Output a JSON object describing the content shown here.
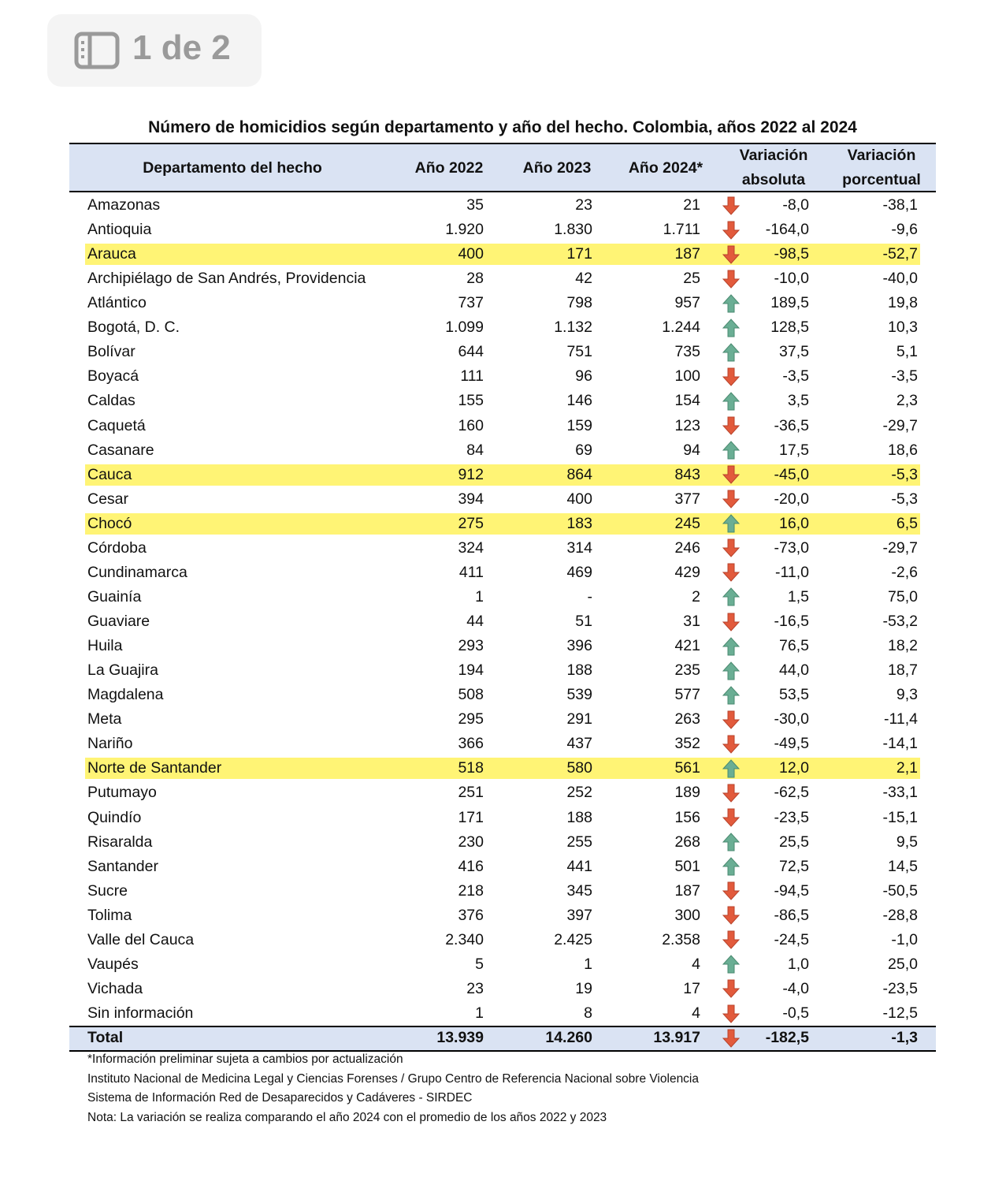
{
  "badge": "1 de 2",
  "title": "Número de homicidios según departamento y año del hecho. Colombia, años 2022 al 2024",
  "table": {
    "headers": [
      "Departamento del hecho",
      "Año 2022",
      "Año 2023",
      "Año 2024*",
      "Variación absoluta",
      "Variación porcentual"
    ],
    "rows": [
      [
        "Amazonas",
        "35",
        "23",
        "21",
        "-8,0",
        "-38,1"
      ],
      [
        "Antioquia",
        "1.920",
        "1.830",
        "1.711",
        "-164,0",
        "-9,6"
      ],
      [
        "Arauca",
        "400",
        "171",
        "187",
        "-98,5",
        "-52,7"
      ],
      [
        "Archipiélago de San Andrés, Providencia",
        "28",
        "42",
        "25",
        "-10,0",
        "-40,0"
      ],
      [
        "Atlántico",
        "737",
        "798",
        "957",
        "189,5",
        "19,8"
      ],
      [
        "Bogotá, D. C.",
        "1.099",
        "1.132",
        "1.244",
        "128,5",
        "10,3"
      ],
      [
        "Bolívar",
        "644",
        "751",
        "735",
        "37,5",
        "5,1"
      ],
      [
        "Boyacá",
        "111",
        "96",
        "100",
        "-3,5",
        "-3,5"
      ],
      [
        "Caldas",
        "155",
        "146",
        "154",
        "3,5",
        "2,3"
      ],
      [
        "Caquetá",
        "160",
        "159",
        "123",
        "-36,5",
        "-29,7"
      ],
      [
        "Casanare",
        "84",
        "69",
        "94",
        "17,5",
        "18,6"
      ],
      [
        "Cauca",
        "912",
        "864",
        "843",
        "-45,0",
        "-5,3"
      ],
      [
        "Cesar",
        "394",
        "400",
        "377",
        "-20,0",
        "-5,3"
      ],
      [
        "Chocó",
        "275",
        "183",
        "245",
        "16,0",
        "6,5"
      ],
      [
        "Córdoba",
        "324",
        "314",
        "246",
        "-73,0",
        "-29,7"
      ],
      [
        "Cundinamarca",
        "411",
        "469",
        "429",
        "-11,0",
        "-2,6"
      ],
      [
        "Guainía",
        "1",
        "-",
        "2",
        "1,5",
        "75,0"
      ],
      [
        "Guaviare",
        "44",
        "51",
        "31",
        "-16,5",
        "-53,2"
      ],
      [
        "Huila",
        "293",
        "396",
        "421",
        "76,5",
        "18,2"
      ],
      [
        "La Guajira",
        "194",
        "188",
        "235",
        "44,0",
        "18,7"
      ],
      [
        "Magdalena",
        "508",
        "539",
        "577",
        "53,5",
        "9,3"
      ],
      [
        "Meta",
        "295",
        "291",
        "263",
        "-30,0",
        "-11,4"
      ],
      [
        "Nariño",
        "366",
        "437",
        "352",
        "-49,5",
        "-14,1"
      ],
      [
        "Norte de Santander",
        "518",
        "580",
        "561",
        "12,0",
        "2,1"
      ],
      [
        "Putumayo",
        "251",
        "252",
        "189",
        "-62,5",
        "-33,1"
      ],
      [
        "Quindío",
        "171",
        "188",
        "156",
        "-23,5",
        "-15,1"
      ],
      [
        "Risaralda",
        "230",
        "255",
        "268",
        "25,5",
        "9,5"
      ],
      [
        "Santander",
        "416",
        "441",
        "501",
        "72,5",
        "14,5"
      ],
      [
        "Sucre",
        "218",
        "345",
        "187",
        "-94,5",
        "-50,5"
      ],
      [
        "Tolima",
        "376",
        "397",
        "300",
        "-86,5",
        "-28,8"
      ],
      [
        "Valle del Cauca",
        "2.340",
        "2.425",
        "2.358",
        "-24,5",
        "-1,0"
      ],
      [
        "Vaupés",
        "5",
        "1",
        "4",
        "1,0",
        "25,0"
      ],
      [
        "Vichada",
        "23",
        "19",
        "17",
        "-4,0",
        "-23,5"
      ],
      [
        "Sin información",
        "1",
        "8",
        "4",
        "-0,5",
        "-12,5"
      ]
    ],
    "total": [
      "Total",
      "13.939",
      "14.260",
      "13.917",
      "-182,5",
      "-1,3"
    ],
    "highlighted_rows": [
      2,
      11,
      13,
      23
    ],
    "highlight_color": "#fff475",
    "header_color": "#dae3f3"
  },
  "footnotes": [
    "*Información preliminar sujeta a cambios por actualización",
    "Instituto Nacional de Medicina Legal y Ciencias Forenses / Grupo Centro de Referencia Nacional sobre Violencia",
    "Sistema de Información Red de Desaparecidos y Cadáveres - SIRDEC",
    "Nota: La variación se realiza comparando el año 2024 con el promedio de los años 2022 y 2023"
  ]
}
